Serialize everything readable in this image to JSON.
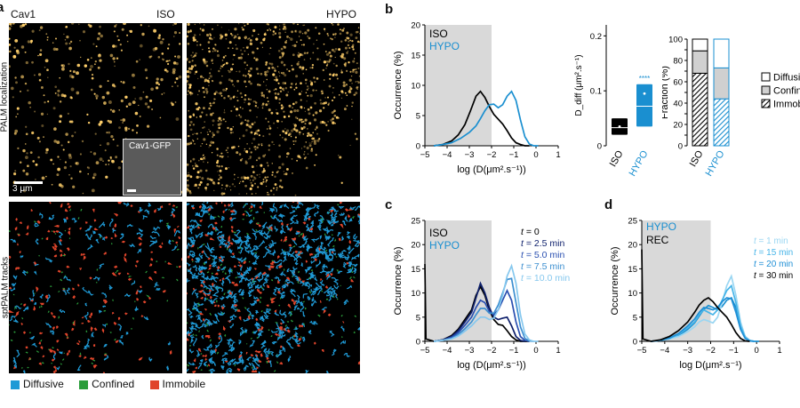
{
  "panel_a": {
    "letter": "a",
    "protein": "Cav1",
    "iso_label": "ISO",
    "hypo_label": "HYPO",
    "row1_label": "PALM localization",
    "row2_label": "sptPALM tracks",
    "inset_label": "Cav1-GFP",
    "scale_label": "3 μm",
    "legend": [
      {
        "label": "Diffusive",
        "color": "#1f9ad6"
      },
      {
        "label": "Confined",
        "color": "#2a9d3a"
      },
      {
        "label": "Immobile",
        "color": "#e0452b"
      }
    ]
  },
  "colors": {
    "iso": "#000000",
    "hypo": "#1a8fd0",
    "shade": "#d9d9d9",
    "palm_spot": "#ffcf6a",
    "t1": "#0d1f6b",
    "t2": "#2a4fb0",
    "t3": "#3d8fd0",
    "t4": "#86c8ee",
    "r1": "#9ad6f2",
    "r2": "#46b4e8",
    "r3": "#1f8fd6"
  },
  "panel_b": {
    "letter": "b",
    "chart_data": [
      {
        "type": "line",
        "x_ticks": [
          -5,
          -4,
          -3,
          -2,
          -1,
          0,
          1
        ],
        "y_ticks": [
          0,
          5,
          10,
          15,
          20
        ],
        "xlim": [
          -5,
          1
        ],
        "ylim": [
          0,
          20
        ],
        "xlabel": "log (D(μm².s⁻¹))",
        "ylabel": "Occurrence (%)",
        "shaded_region": [
          -5,
          -2
        ],
        "series": [
          {
            "name": "ISO",
            "color_key": "iso",
            "x": [
              -4.6,
              -4.2,
              -3.8,
              -3.5,
              -3.2,
              -2.95,
              -2.7,
              -2.5,
              -2.3,
              -2.1,
              -1.9,
              -1.7,
              -1.5,
              -1.3,
              -1.1,
              -0.9,
              -0.7,
              -0.5,
              -0.3
            ],
            "y": [
              0,
              0.2,
              0.8,
              1.8,
              3.5,
              5.8,
              8.2,
              9.0,
              8.0,
              6.5,
              5.2,
              4.4,
              3.6,
              2.5,
              1.3,
              0.5,
              0.2,
              0,
              0
            ]
          },
          {
            "name": "HYPO",
            "color_key": "hypo",
            "x": [
              -4.6,
              -4.2,
              -3.8,
              -3.4,
              -3.0,
              -2.7,
              -2.5,
              -2.3,
              -2.1,
              -1.9,
              -1.7,
              -1.5,
              -1.3,
              -1.1,
              -0.9,
              -0.7,
              -0.5,
              -0.3,
              -0.1,
              0.1
            ],
            "y": [
              0,
              0.2,
              0.5,
              1.2,
              2.2,
              3.3,
              4.5,
              5.8,
              6.8,
              6.9,
              6.3,
              6.8,
              8.2,
              9.0,
              7.5,
              4.3,
              1.5,
              0.3,
              0,
              0
            ]
          }
        ]
      },
      {
        "type": "box",
        "y_ticks": [
          0,
          0.1,
          0.2
        ],
        "ylim": [
          0,
          0.22
        ],
        "ylabel": "D_diff (μm².s⁻¹)",
        "categories": [
          "ISO",
          "HYPO"
        ],
        "boxes": [
          {
            "q1": 0.02,
            "median": 0.033,
            "q3": 0.05,
            "mean": 0.035,
            "color_key": "iso"
          },
          {
            "q1": 0.035,
            "median": 0.072,
            "q3": 0.112,
            "mean": 0.095,
            "color_key": "hypo"
          }
        ],
        "significance": "****"
      },
      {
        "type": "bar",
        "y_ticks": [
          0,
          10,
          20,
          30,
          40,
          50,
          60,
          70,
          80,
          90,
          100
        ],
        "ylim": [
          0,
          100
        ],
        "ylabel": "Fraction (%)",
        "categories": [
          "ISO",
          "HYPO"
        ],
        "series": [
          {
            "name": "Immobile",
            "values": [
              68,
              44
            ]
          },
          {
            "name": "Confined",
            "values": [
              21,
              29
            ]
          },
          {
            "name": "Diffusive",
            "values": [
              11,
              27
            ]
          }
        ],
        "legend_labels": [
          "Diffusive",
          "Confined",
          "Immobile"
        ]
      }
    ]
  },
  "panel_c": {
    "letter": "c",
    "chart_data": {
      "type": "line",
      "x_ticks": [
        -5,
        -4,
        -3,
        -2,
        -1,
        0,
        1
      ],
      "y_ticks": [
        0,
        5,
        10,
        15,
        20,
        25
      ],
      "xlim": [
        -5,
        1
      ],
      "ylim": [
        0,
        25
      ],
      "xlabel": "log (D(μm².s⁻¹))",
      "ylabel": "Occurrence (%)",
      "shaded_region": [
        -5,
        -2
      ],
      "legend_left": [
        "ISO",
        "HYPO"
      ],
      "legend_right_prefix": "t",
      "legend_right": [
        " = 0",
        " = 2.5 min",
        " = 5.0 min",
        " = 7.5 min",
        " = 10.0 min"
      ],
      "series": [
        {
          "name": "t = 0",
          "color_key": "iso",
          "x": [
            -5,
            -4.95,
            -4.6,
            -4.2,
            -3.8,
            -3.5,
            -3.2,
            -2.9,
            -2.7,
            -2.5,
            -2.3,
            -2.1,
            -1.9,
            -1.7,
            -1.5,
            -1.3,
            -1.1,
            -0.9,
            -0.7,
            -0.5,
            -0.3
          ],
          "y": [
            16,
            0.5,
            0,
            0.3,
            1.2,
            2.5,
            4.5,
            6.5,
            9.5,
            11.3,
            9.5,
            6.5,
            4.5,
            3.5,
            3.3,
            2.2,
            1.0,
            0.3,
            0,
            0,
            0
          ]
        },
        {
          "name": "t = 2.5 min",
          "color_key": "t1",
          "x": [
            -4.6,
            -4.2,
            -3.8,
            -3.5,
            -3.2,
            -2.9,
            -2.7,
            -2.5,
            -2.3,
            -2.1,
            -1.9,
            -1.7,
            -1.5,
            -1.3,
            -1.1,
            -0.9,
            -0.7,
            -0.5
          ],
          "y": [
            0,
            0.3,
            1.0,
            2.2,
            4.0,
            6.0,
            9.0,
            12.0,
            10.0,
            7.0,
            5.0,
            4.5,
            4.8,
            5.0,
            3.2,
            1.0,
            0.2,
            0
          ]
        },
        {
          "name": "t = 5.0 min",
          "color_key": "t2",
          "x": [
            -4.6,
            -4.2,
            -3.8,
            -3.5,
            -3.2,
            -2.9,
            -2.7,
            -2.5,
            -2.3,
            -2.1,
            -1.9,
            -1.7,
            -1.5,
            -1.3,
            -1.1,
            -0.9,
            -0.7,
            -0.5,
            -0.3
          ],
          "y": [
            0,
            0.2,
            0.8,
            1.8,
            3.3,
            5.0,
            7.0,
            8.5,
            8.0,
            6.2,
            5.5,
            6.5,
            8.5,
            10.5,
            8.5,
            4.0,
            1.0,
            0.2,
            0
          ]
        },
        {
          "name": "t = 7.5 min",
          "color_key": "t3",
          "x": [
            -4.6,
            -4.2,
            -3.8,
            -3.5,
            -3.2,
            -2.9,
            -2.7,
            -2.5,
            -2.3,
            -2.1,
            -1.9,
            -1.7,
            -1.5,
            -1.3,
            -1.1,
            -0.9,
            -0.7,
            -0.5,
            -0.3,
            -0.1
          ],
          "y": [
            0,
            0.2,
            0.6,
            1.4,
            2.6,
            4.0,
            5.5,
            6.8,
            6.8,
            5.8,
            5.8,
            7.5,
            10.0,
            12.8,
            13.0,
            8.0,
            3.0,
            0.6,
            0.1,
            0
          ]
        },
        {
          "name": "t = 10.0 min",
          "color_key": "t4",
          "x": [
            -4.6,
            -4.2,
            -3.8,
            -3.5,
            -3.2,
            -2.9,
            -2.7,
            -2.5,
            -2.3,
            -2.1,
            -1.9,
            -1.7,
            -1.5,
            -1.3,
            -1.1,
            -0.9,
            -0.7,
            -0.5,
            -0.3,
            -0.1,
            0.1
          ],
          "y": [
            0,
            0.2,
            0.5,
            1.1,
            2.1,
            3.2,
            4.2,
            5.0,
            5.0,
            4.5,
            4.8,
            6.5,
            9.5,
            13.5,
            15.6,
            12.0,
            5.5,
            1.5,
            0.3,
            0,
            0
          ]
        }
      ]
    }
  },
  "panel_d": {
    "letter": "d",
    "chart_data": {
      "type": "line",
      "x_ticks": [
        -5,
        -4,
        -3,
        -2,
        -1,
        0,
        1
      ],
      "y_ticks": [
        0,
        5,
        10,
        15,
        20,
        25
      ],
      "xlim": [
        -5,
        1
      ],
      "ylim": [
        0,
        25
      ],
      "xlabel": "log D(μm².s⁻¹)",
      "ylabel": "Occurrence (%)",
      "shaded_region": [
        -5,
        -2
      ],
      "legend_left": [
        "HYPO",
        "REC"
      ],
      "legend_right_prefix": "t",
      "legend_right": [
        " = 1 min",
        " = 15 min",
        " = 20 min",
        " = 30 min"
      ],
      "series": [
        {
          "name": "HYPO",
          "color_key": "hypo",
          "x": [
            -4.6,
            -4.2,
            -3.8,
            -3.4,
            -3.0,
            -2.7,
            -2.5,
            -2.3,
            -2.1,
            -1.9,
            -1.7,
            -1.5,
            -1.3,
            -1.1,
            -0.9,
            -0.7,
            -0.5,
            -0.3,
            -0.1,
            0.1
          ],
          "y": [
            0,
            0.2,
            0.5,
            1.2,
            2.5,
            3.8,
            5.2,
            6.6,
            7.4,
            7.0,
            6.5,
            7.2,
            8.5,
            9.0,
            7.0,
            3.5,
            1.0,
            0.2,
            0,
            0
          ]
        },
        {
          "name": "t = 1 min",
          "color_key": "r1",
          "x": [
            -4.6,
            -4.2,
            -3.8,
            -3.4,
            -3.0,
            -2.7,
            -2.5,
            -2.3,
            -2.1,
            -1.9,
            -1.7,
            -1.5,
            -1.3,
            -1.1,
            -0.9,
            -0.7,
            -0.5,
            -0.3,
            -0.1
          ],
          "y": [
            0,
            0.2,
            0.5,
            1.0,
            2.0,
            3.0,
            4.0,
            4.5,
            4.2,
            3.8,
            5.0,
            8.0,
            11.5,
            13.5,
            9.5,
            4.0,
            1.0,
            0.2,
            0
          ]
        },
        {
          "name": "t = 15 min",
          "color_key": "r2",
          "x": [
            -4.6,
            -4.2,
            -3.8,
            -3.4,
            -3.0,
            -2.7,
            -2.5,
            -2.3,
            -2.1,
            -1.9,
            -1.7,
            -1.5,
            -1.3,
            -1.1,
            -0.9,
            -0.7,
            -0.5,
            -0.3,
            -0.1
          ],
          "y": [
            0,
            0.2,
            0.6,
            1.4,
            2.8,
            4.0,
            5.5,
            6.5,
            6.0,
            5.5,
            6.5,
            8.5,
            10.5,
            11.5,
            8.0,
            3.2,
            0.8,
            0.1,
            0
          ]
        },
        {
          "name": "t = 20 min",
          "color_key": "r3",
          "x": [
            -4.6,
            -4.2,
            -3.8,
            -3.4,
            -3.0,
            -2.7,
            -2.5,
            -2.3,
            -2.1,
            -1.9,
            -1.7,
            -1.5,
            -1.3,
            -1.1,
            -0.9,
            -0.7,
            -0.5,
            -0.3,
            -0.1
          ],
          "y": [
            0,
            0.2,
            0.7,
            1.6,
            3.2,
            4.6,
            6.0,
            7.0,
            6.8,
            6.5,
            7.0,
            8.2,
            9.0,
            8.8,
            6.0,
            2.5,
            0.6,
            0.1,
            0
          ]
        },
        {
          "name": "t = 30 min",
          "color_key": "iso",
          "x": [
            -5,
            -4.95,
            -4.6,
            -4.2,
            -3.8,
            -3.4,
            -3.0,
            -2.7,
            -2.5,
            -2.3,
            -2.1,
            -1.9,
            -1.7,
            -1.5,
            -1.3,
            -1.1,
            -0.9,
            -0.7,
            -0.5,
            -0.3
          ],
          "y": [
            19,
            0.5,
            0,
            0.3,
            1.0,
            2.2,
            4.0,
            6.0,
            7.5,
            8.5,
            9.0,
            8.2,
            7.0,
            6.0,
            5.0,
            3.5,
            1.8,
            0.6,
            0.1,
            0
          ]
        }
      ]
    }
  }
}
